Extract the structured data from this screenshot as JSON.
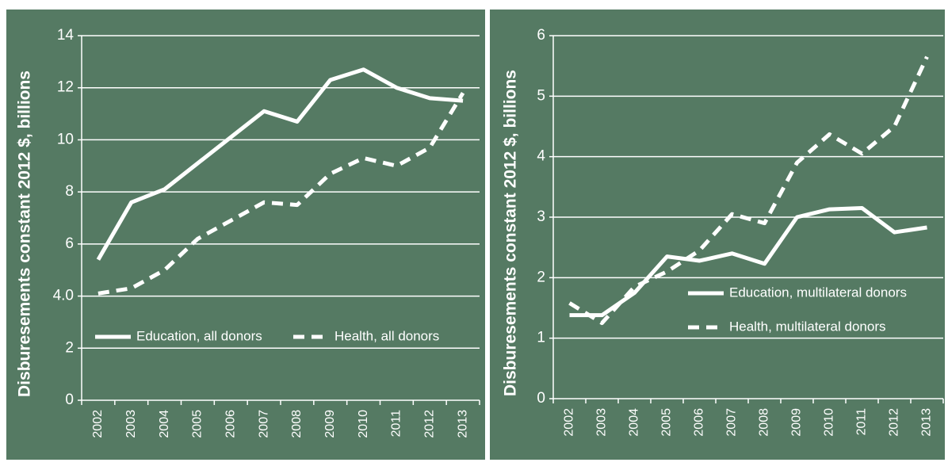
{
  "chart_data": [
    {
      "type": "line",
      "y_label": "Disburesements constant 2012 $, billions",
      "categories": [
        "2002",
        "2003",
        "2004",
        "2005",
        "2006",
        "2007",
        "2008",
        "2009",
        "2010",
        "2011",
        "2012",
        "2013"
      ],
      "ylim": [
        0,
        14
      ],
      "yticks": [
        0,
        2,
        {
          "value": 4,
          "label": "4.0"
        },
        6,
        8,
        10,
        12,
        14
      ],
      "grid": true,
      "series": [
        {
          "name": "Education, all donors",
          "color": "#ffffff",
          "line_style": "solid",
          "values": [
            5.4,
            7.6,
            8.1,
            9.1,
            10.1,
            11.1,
            10.7,
            12.3,
            12.7,
            12.0,
            11.6,
            11.5
          ]
        },
        {
          "name": "Health, all donors",
          "color": "#ffffff",
          "line_style": "dashed",
          "values": [
            4.1,
            4.3,
            5.0,
            6.2,
            6.9,
            7.6,
            7.5,
            8.7,
            9.3,
            9.0,
            9.7,
            11.8
          ]
        }
      ]
    },
    {
      "type": "line",
      "y_label": "Disburesements constant 2012 $, billions",
      "categories": [
        "2002",
        "2003",
        "2004",
        "2005",
        "2006",
        "2007",
        "2008",
        "2009",
        "2010",
        "2011",
        "2012",
        "2013"
      ],
      "ylim": [
        0,
        6
      ],
      "yticks": [
        0,
        1,
        2,
        3,
        4,
        5,
        6
      ],
      "grid": true,
      "series": [
        {
          "name": "Education, multilateral donors",
          "color": "#ffffff",
          "line_style": "solid",
          "values": [
            1.38,
            1.38,
            1.75,
            2.35,
            2.28,
            2.4,
            2.23,
            3.0,
            3.13,
            3.15,
            2.75,
            2.83
          ]
        },
        {
          "name": "Health, multilateral donors",
          "color": "#ffffff",
          "line_style": "dashed",
          "values": [
            1.58,
            1.25,
            1.85,
            2.1,
            2.45,
            3.05,
            2.9,
            3.9,
            4.37,
            4.05,
            4.5,
            5.65
          ]
        }
      ]
    }
  ]
}
